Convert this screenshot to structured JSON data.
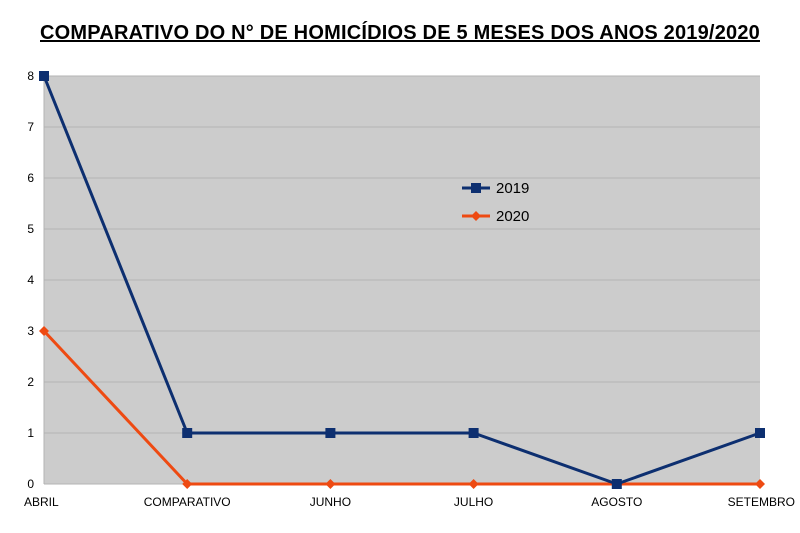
{
  "chart_data": {
    "type": "line",
    "title": "COMPARATIVO DO N° DE HOMICÍDIOS DE 5 MESES DOS ANOS 2019/2020",
    "categories": [
      "ABRIL",
      "COMPARATIVO",
      "JUNHO",
      "JULHO",
      "AGOSTO",
      "SETEMBRO"
    ],
    "series": [
      {
        "name": "2019",
        "values": [
          8,
          1,
          1,
          1,
          0,
          1
        ],
        "color": "#0d2f70",
        "marker": "square"
      },
      {
        "name": "2020",
        "values": [
          3,
          0,
          0,
          0,
          0,
          0
        ],
        "color": "#ee4a12",
        "marker": "diamond"
      }
    ],
    "ylim": [
      0,
      8
    ],
    "yticks": [
      "0",
      "1",
      "2",
      "3",
      "4",
      "5",
      "6",
      "7",
      "8"
    ],
    "grid": true,
    "plot_background": "#cccccc",
    "legend_position": "right-center"
  }
}
